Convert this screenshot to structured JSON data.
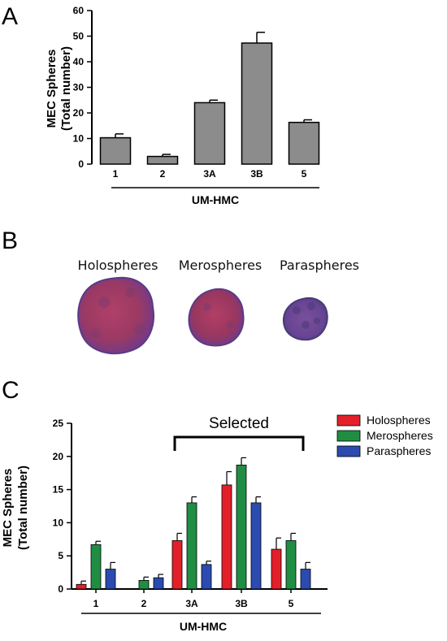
{
  "panels": {
    "a": "A",
    "b": "B",
    "c": "C"
  },
  "spheres": {
    "labels": [
      "Holospheres",
      "Merospheres",
      "Paraspheres"
    ]
  },
  "colors": {
    "gray_bar": "#8c8c8c",
    "holospheres": "#e3202a",
    "merospheres": "#1f8e43",
    "paraspheres": "#2b4bb0",
    "sphere_fill": "#9b3a63",
    "sphere_edge": "#6a3b8f"
  },
  "chart_data": [
    {
      "type": "bar",
      "categories": [
        "1",
        "2",
        "3A",
        "3B",
        "5"
      ],
      "values": [
        10.3,
        3.0,
        24.0,
        47.3,
        16.3
      ],
      "errors": [
        1.5,
        0.8,
        1.0,
        4.2,
        1.0
      ],
      "ylabel": "MEC Spheres\n(Total number)",
      "ylabel_lines": [
        "MEC Spheres",
        "(Total number)"
      ],
      "group_label": "UM-HMC",
      "ylim": [
        0,
        60
      ],
      "yticks": [
        "0",
        "10",
        "20",
        "30",
        "40",
        "50",
        "60"
      ]
    },
    {
      "type": "bar",
      "categories": [
        "1",
        "2",
        "3A",
        "3B",
        "5"
      ],
      "series": [
        {
          "name": "Holospheres",
          "values": [
            0.7,
            0.0,
            7.3,
            15.7,
            6.0
          ],
          "errors": [
            0.5,
            0.0,
            1.1,
            2.0,
            1.7
          ]
        },
        {
          "name": "Merospheres",
          "values": [
            6.7,
            1.3,
            13.0,
            18.7,
            7.3
          ],
          "errors": [
            0.5,
            0.5,
            0.9,
            1.1,
            1.1
          ]
        },
        {
          "name": "Paraspheres",
          "values": [
            3.0,
            1.7,
            3.7,
            13.0,
            3.0
          ],
          "errors": [
            1.0,
            0.5,
            0.5,
            0.9,
            1.0
          ]
        }
      ],
      "ylabel_lines": [
        "MEC Spheres",
        "(Total number)"
      ],
      "group_label": "UM-HMC",
      "annotation": "Selected",
      "ylim": [
        0,
        25
      ],
      "yticks": [
        "0",
        "5",
        "10",
        "15",
        "20",
        "25"
      ],
      "legend": "top-right"
    }
  ]
}
